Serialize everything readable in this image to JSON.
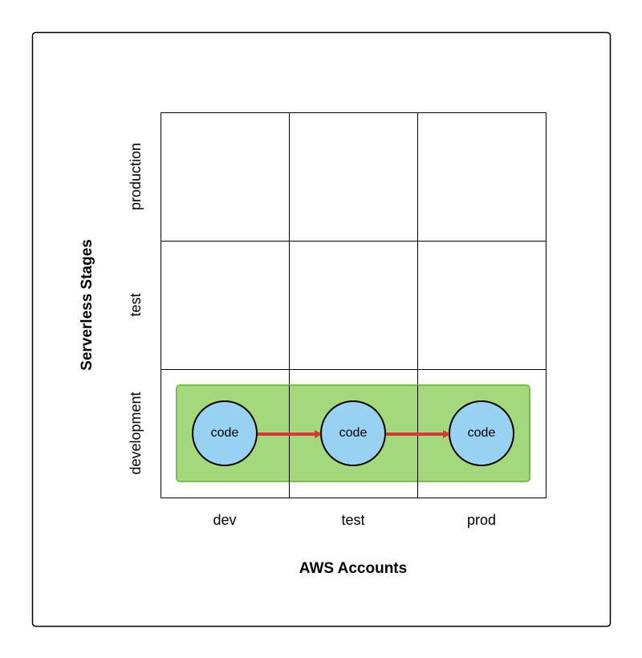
{
  "diagram": {
    "y_axis_title": "Serverless Stages",
    "x_axis_title": "AWS Accounts",
    "rows": [
      "production",
      "test",
      "development"
    ],
    "columns": [
      "dev",
      "test",
      "prod"
    ],
    "nodes": [
      {
        "label": "code",
        "row": "development",
        "column": "dev"
      },
      {
        "label": "code",
        "row": "development",
        "column": "test"
      },
      {
        "label": "code",
        "row": "development",
        "column": "prod"
      }
    ],
    "edges": [
      {
        "from": 0,
        "to": 1
      },
      {
        "from": 1,
        "to": 2
      }
    ],
    "colors": {
      "band_fill": "#a3d97a",
      "band_stroke": "#7cbd52",
      "node_fill": "#99d1f2",
      "arrow": "#d23a3a"
    }
  }
}
